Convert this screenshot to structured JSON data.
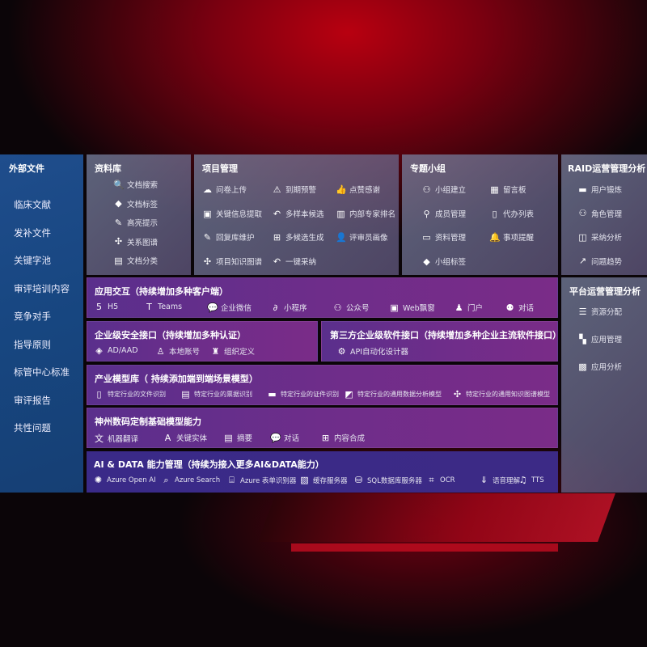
{
  "left": {
    "title": "外部文件",
    "items": [
      "临床文献",
      "发补文件",
      "关键字池",
      "审评培训内容",
      "竞争对手",
      "指导原则",
      "标管中心标准",
      "审评报告",
      "共性问题"
    ]
  },
  "library": {
    "title": "资料库",
    "items": [
      {
        "label": "文档搜索",
        "icon": "doc-search-icon"
      },
      {
        "label": "文档标签",
        "icon": "tag-icon"
      },
      {
        "label": "高亮提示",
        "icon": "pen-icon"
      },
      {
        "label": "关系图谱",
        "icon": "graph-icon"
      },
      {
        "label": "文档分类",
        "icon": "doc-list-icon"
      }
    ]
  },
  "project": {
    "title": "项目管理",
    "items": [
      {
        "label": "问卷上传",
        "icon": "cloud-upload-icon"
      },
      {
        "label": "到期预警",
        "icon": "alarm-icon"
      },
      {
        "label": "点赞感谢",
        "icon": "thumbs-up-icon"
      },
      {
        "label": "关键信息提取",
        "icon": "window-icon"
      },
      {
        "label": "多样本候选",
        "icon": "reply-icon"
      },
      {
        "label": "内部专家排名",
        "icon": "ranking-icon"
      },
      {
        "label": "回复库维护",
        "icon": "pen-icon"
      },
      {
        "label": "多候选生成",
        "icon": "puzzle-icon"
      },
      {
        "label": "评审员画像",
        "icon": "user-icon"
      },
      {
        "label": "项目知识图谱",
        "icon": "graph-icon"
      },
      {
        "label": "一键采纳",
        "icon": "reply-icon"
      }
    ]
  },
  "group": {
    "title": "专题小组",
    "items": [
      {
        "label": "小组建立",
        "icon": "users-icon"
      },
      {
        "label": "留言板",
        "icon": "bbs-icon"
      },
      {
        "label": "成员管理",
        "icon": "user-add-icon"
      },
      {
        "label": "代办列表",
        "icon": "clipboard-icon"
      },
      {
        "label": "资料管理",
        "icon": "folder-icon"
      },
      {
        "label": "事项提醒",
        "icon": "bell-icon"
      },
      {
        "label": "小组标签",
        "icon": "tag-icon"
      }
    ]
  },
  "raid": {
    "title": "RAID运营管理分析",
    "items": [
      {
        "label": "用户锻炼",
        "icon": "id-card-icon"
      },
      {
        "label": "角色管理",
        "icon": "users-icon"
      },
      {
        "label": "采纳分析",
        "icon": "qa-icon"
      },
      {
        "label": "问题趋势",
        "icon": "trend-icon"
      }
    ]
  },
  "platform": {
    "title": "平台运营管理分析",
    "items": [
      {
        "label": "资源分配",
        "icon": "checklist-icon"
      },
      {
        "label": "应用管理",
        "icon": "apps-icon"
      },
      {
        "label": "应用分析",
        "icon": "analysis-icon"
      }
    ]
  },
  "interaction": {
    "title": "应用交互（持续增加多种客户端）",
    "items": [
      {
        "label": "H5",
        "icon": "html5-icon"
      },
      {
        "label": "Teams",
        "icon": "teams-icon"
      },
      {
        "label": "企业微信",
        "icon": "chat-icon"
      },
      {
        "label": "小程序",
        "icon": "miniapp-icon"
      },
      {
        "label": "公众号",
        "icon": "users-icon"
      },
      {
        "label": "Web飘窗",
        "icon": "window-icon"
      },
      {
        "label": "门户",
        "icon": "portal-icon"
      },
      {
        "label": "对话",
        "icon": "dialog-icon"
      }
    ]
  },
  "security": {
    "title": "企业级安全接口（持续增加多种认证）",
    "items": [
      {
        "label": "AD/AAD",
        "icon": "diamond-icon"
      },
      {
        "label": "本地账号",
        "icon": "user-lock-icon"
      },
      {
        "label": "组织定义",
        "icon": "org-icon"
      }
    ]
  },
  "thirdparty": {
    "title": "第三方企业级软件接口（持续增加多种企业主流软件接口）",
    "items": [
      {
        "label": "API自动化设计器",
        "icon": "gear-icon"
      }
    ]
  },
  "industry": {
    "title": "产业模型库（ 持续添加端到端场景模型）",
    "items": [
      {
        "label": "特定行业的文件识别",
        "icon": "file-icon"
      },
      {
        "label": "特定行业的票据识别",
        "icon": "receipt-icon"
      },
      {
        "label": "特定行业的证件识别",
        "icon": "id-card-icon"
      },
      {
        "label": "特定行业的通用数据分析模型",
        "icon": "chart-icon"
      },
      {
        "label": "特定行业的通用知识图谱模型",
        "icon": "graph-icon"
      }
    ]
  },
  "base": {
    "title": "神州数码定制基础模型能力",
    "items": [
      {
        "label": "机器翻译",
        "icon": "translate-icon"
      },
      {
        "label": "关键实体",
        "icon": "entity-icon"
      },
      {
        "label": "摘要",
        "icon": "doc-icon"
      },
      {
        "label": "对话",
        "icon": "chat-icon"
      },
      {
        "label": "内容合成",
        "icon": "puzzle-icon"
      }
    ]
  },
  "aidata": {
    "title": "AI & DATA 能力管理（持续为接入更多AI&DATA能力）",
    "items": [
      {
        "label": "Azure Open AI",
        "icon": "openai-icon"
      },
      {
        "label": "Azure Search",
        "icon": "search-icon"
      },
      {
        "label": "Azure 表单识别器",
        "icon": "form-icon"
      },
      {
        "label": "缓存服务器",
        "icon": "cache-icon"
      },
      {
        "label": "SQL数据库服务器",
        "icon": "database-icon"
      },
      {
        "label": "OCR",
        "icon": "ocr-icon"
      },
      {
        "label": "语音理解",
        "icon": "speech-icon"
      },
      {
        "label": "TTS",
        "icon": "tts-icon"
      }
    ]
  }
}
